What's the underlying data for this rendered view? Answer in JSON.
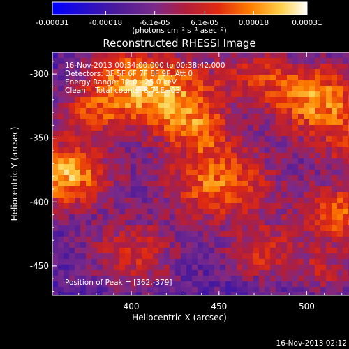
{
  "chart_data": {
    "type": "heatmap",
    "title": "Reconstructed RHESSI Image",
    "xlabel": "Heliocentric X (arcsec)",
    "ylabel": "Heliocentric Y (arcsec)",
    "xlim": [
      355,
      540
    ],
    "ylim": [
      -473,
      -283
    ],
    "x_ticks": [
      400,
      450,
      500
    ],
    "y_ticks": [
      -300,
      -350,
      -400,
      -450
    ],
    "colorbar": {
      "min": -0.00031,
      "max": 0.00031,
      "ticks": [
        -0.00031,
        -0.00018,
        -6.1e-05,
        6.1e-05,
        0.00018,
        0.00031
      ],
      "tick_labels": [
        "-0.00031",
        "-0.00018",
        "-6.1e-05",
        "6.1e-05",
        "0.00018",
        "0.00031"
      ],
      "unit_label": "(photons cm⁻² s⁻¹ asec⁻²)"
    },
    "annotations": [
      "16-Nov-2013 00:34:00.000 to 00:38:42.000",
      "Detectors: 3F 5F 6F 7F 8F 9F, Att 0",
      "Energy Range: 12.0 - 25.0 keV",
      "Clean    Total counts: 8.71E+03"
    ],
    "peak_label": "Position of Peak = [362,-379]",
    "footer": "16-Nov-2013 02:12"
  },
  "colors": {
    "background": "#000000",
    "text": "#ffffff",
    "colormap": [
      "#0000ff",
      "#4a1a9a",
      "#7a2a8a",
      "#b01e3c",
      "#e02a10",
      "#ff8000",
      "#ffd24d",
      "#ffffff"
    ]
  }
}
